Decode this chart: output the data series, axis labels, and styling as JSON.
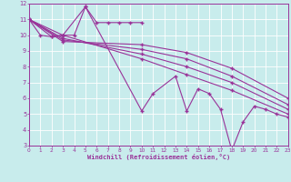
{
  "background_color": "#c8ecec",
  "line_color": "#993399",
  "grid_color": "#aad8d8",
  "xlabel": "Windchill (Refroidissement éolien,°C)",
  "xlim": [
    0,
    23
  ],
  "ylim": [
    3,
    12
  ],
  "xticks": [
    0,
    1,
    2,
    3,
    4,
    5,
    6,
    7,
    8,
    9,
    10,
    11,
    12,
    13,
    14,
    15,
    16,
    17,
    18,
    19,
    20,
    21,
    22,
    23
  ],
  "yticks": [
    3,
    4,
    5,
    6,
    7,
    8,
    9,
    10,
    11,
    12
  ],
  "series": [
    {
      "x": [
        0,
        1,
        2,
        3,
        4,
        5,
        6,
        7,
        8,
        9,
        10
      ],
      "y": [
        11.0,
        10.0,
        9.9,
        10.0,
        10.0,
        11.8,
        10.8,
        10.8,
        10.8,
        10.8,
        10.8
      ]
    },
    {
      "x": [
        0,
        2,
        3,
        5,
        10,
        11,
        13,
        14,
        15,
        16,
        17,
        18,
        19,
        20,
        21,
        22,
        23
      ],
      "y": [
        11.0,
        9.9,
        10.0,
        11.8,
        5.2,
        6.3,
        7.4,
        5.2,
        6.6,
        6.3,
        5.3,
        2.7,
        4.5,
        5.5,
        5.3,
        5.0,
        4.8
      ]
    },
    {
      "x": [
        0,
        3,
        10,
        14,
        18,
        23
      ],
      "y": [
        11.0,
        10.0,
        8.5,
        7.5,
        6.5,
        5.0
      ]
    },
    {
      "x": [
        0,
        3,
        10,
        14,
        18,
        23
      ],
      "y": [
        11.0,
        9.8,
        8.8,
        8.0,
        7.0,
        5.3
      ]
    },
    {
      "x": [
        0,
        3,
        10,
        14,
        18,
        23
      ],
      "y": [
        11.0,
        9.7,
        9.1,
        8.5,
        7.4,
        5.6
      ]
    },
    {
      "x": [
        0,
        3,
        10,
        14,
        18,
        23
      ],
      "y": [
        11.0,
        9.6,
        9.4,
        8.9,
        7.9,
        6.0
      ]
    }
  ]
}
